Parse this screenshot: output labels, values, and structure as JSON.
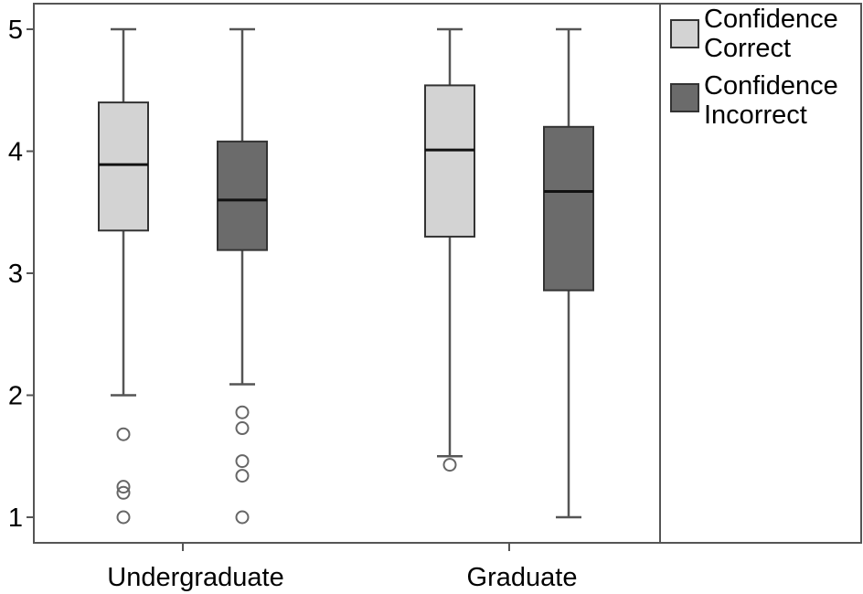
{
  "chart_data": {
    "type": "boxplot",
    "title": "",
    "xlabel": "",
    "ylabel": "",
    "ylim": [
      1,
      5
    ],
    "y_ticks": [
      "1",
      "2",
      "3",
      "4",
      "5"
    ],
    "categories": [
      "Undergraduate",
      "Graduate"
    ],
    "legend_position": "right",
    "series": [
      {
        "name_lines": [
          "Confidence",
          "Correct"
        ],
        "color": "#d3d3d3",
        "boxes": [
          {
            "category": "Undergraduate",
            "whisker_low": 2.0,
            "q1": 3.35,
            "median": 3.89,
            "q3": 4.4,
            "whisker_high": 5.0,
            "outliers": [
              1.68,
              1.25,
              1.2,
              1.0
            ]
          },
          {
            "category": "Graduate",
            "whisker_low": 1.5,
            "q1": 3.3,
            "median": 4.01,
            "q3": 4.54,
            "whisker_high": 5.0,
            "outliers": [
              1.43
            ]
          }
        ]
      },
      {
        "name_lines": [
          "Confidence",
          "Incorrect"
        ],
        "color": "#6b6b6b",
        "boxes": [
          {
            "category": "Undergraduate",
            "whisker_low": 2.09,
            "q1": 3.19,
            "median": 3.6,
            "q3": 4.08,
            "whisker_high": 5.0,
            "outliers": [
              1.86,
              1.73,
              1.46,
              1.34,
              1.0
            ]
          },
          {
            "category": "Graduate",
            "whisker_low": 1.0,
            "q1": 2.86,
            "median": 3.67,
            "q3": 4.2,
            "whisker_high": 5.0,
            "outliers": []
          }
        ]
      }
    ],
    "colors": {
      "frame": "#555555",
      "whisker": "#555555",
      "median": "#111111"
    }
  }
}
